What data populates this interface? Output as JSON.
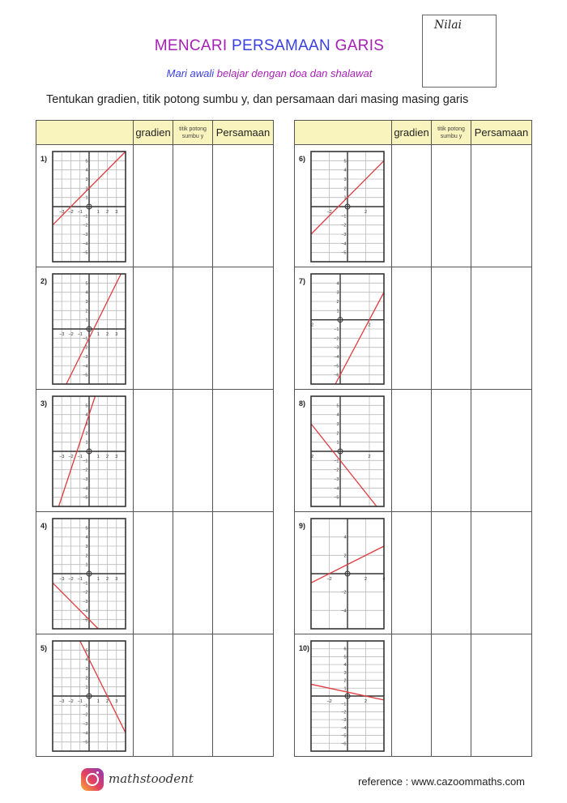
{
  "header": {
    "nilai_label": "Nilai",
    "title_parts": [
      "MENCARI ",
      "PERSAMAAN ",
      "GARIS"
    ],
    "subtitle_parts": [
      "Mari awali ",
      "belajar dengan doa dan shalawat"
    ],
    "instruction": "Tentukan gradien, titik potong sumbu y, dan persamaan dari masing masing garis",
    "colors": {
      "purple": "#a51fb5",
      "blue": "#3a3fe0",
      "header_fill": "#f9f4bd",
      "line": "#e0393e"
    }
  },
  "table_headers": {
    "gradien": "gradien",
    "titik_potong": "titik potong sumbu y",
    "persamaan": "Persamaan"
  },
  "questions": [
    {
      "label": "1)",
      "xlim": [
        -4,
        4
      ],
      "ylim": [
        -6,
        6
      ],
      "gx": 1,
      "gy": 1,
      "xticks": [
        -3,
        -2,
        -1,
        1,
        2,
        3
      ],
      "yticks": [
        -5,
        -4,
        -3,
        -2,
        -1,
        1,
        2,
        3,
        4,
        5
      ],
      "slope": 1,
      "intercept": 2
    },
    {
      "label": "2)",
      "xlim": [
        -4,
        4
      ],
      "ylim": [
        -6,
        6
      ],
      "gx": 1,
      "gy": 1,
      "xticks": [
        -3,
        -2,
        -1,
        1,
        2,
        3
      ],
      "yticks": [
        -5,
        -4,
        -3,
        -2,
        -1,
        1,
        2,
        3,
        4,
        5
      ],
      "slope": 2,
      "intercept": -1
    },
    {
      "label": "3)",
      "xlim": [
        -4,
        4
      ],
      "ylim": [
        -6,
        6
      ],
      "gx": 1,
      "gy": 1,
      "xticks": [
        -3,
        -2,
        -1,
        1,
        2,
        3
      ],
      "yticks": [
        -5,
        -4,
        -3,
        -2,
        -1,
        1,
        2,
        3,
        4,
        5
      ],
      "slope": 3,
      "intercept": 4
    },
    {
      "label": "4)",
      "xlim": [
        -4,
        4
      ],
      "ylim": [
        -6,
        6
      ],
      "gx": 1,
      "gy": 1,
      "xticks": [
        -3,
        -2,
        -1,
        1,
        2,
        3
      ],
      "yticks": [
        -5,
        -4,
        -3,
        -2,
        -1,
        1,
        2,
        3,
        4,
        5
      ],
      "slope": -1,
      "intercept": -5
    },
    {
      "label": "5)",
      "xlim": [
        -4,
        4
      ],
      "ylim": [
        -6,
        6
      ],
      "gx": 1,
      "gy": 1,
      "xticks": [
        -3,
        -2,
        -1,
        1,
        2,
        3
      ],
      "yticks": [
        -5,
        -4,
        -3,
        -2,
        -1,
        1,
        2,
        3,
        4,
        5
      ],
      "slope": -2,
      "intercept": 4
    },
    {
      "label": "6)",
      "xlim": [
        -4,
        4
      ],
      "ylim": [
        -6,
        6
      ],
      "gx": 2,
      "gy": 1,
      "xticks": [
        -2,
        2
      ],
      "yticks": [
        -5,
        -4,
        -3,
        -2,
        -1,
        1,
        2,
        3,
        4,
        5
      ],
      "slope": 1,
      "intercept": 1
    },
    {
      "label": "7)",
      "xlim": [
        -2,
        3
      ],
      "ylim": [
        -7,
        5
      ],
      "gx": 2,
      "gy": 1,
      "xticks": [
        -2,
        2
      ],
      "yticks": [
        -6,
        -5,
        -4,
        -3,
        -2,
        -1,
        1,
        2,
        3,
        4
      ],
      "slope": 3,
      "intercept": -6
    },
    {
      "label": "8)",
      "xlim": [
        -2,
        3
      ],
      "ylim": [
        -6,
        6
      ],
      "gx": 2,
      "gy": 1,
      "xticks": [
        -2,
        2
      ],
      "yticks": [
        -5,
        -4,
        -3,
        -2,
        -1,
        1,
        2,
        3,
        4,
        5
      ],
      "slope": -2,
      "intercept": -1
    },
    {
      "label": "9)",
      "xlim": [
        -4,
        4
      ],
      "ylim": [
        -6,
        6
      ],
      "gx": 2,
      "gy": 2,
      "xticks": [
        -2,
        2,
        4
      ],
      "yticks": [
        -4,
        -2,
        2,
        4
      ],
      "slope": 0.5,
      "intercept": 1
    },
    {
      "label": "10)",
      "xlim": [
        -4,
        4
      ],
      "ylim": [
        -7,
        7
      ],
      "gx": 2,
      "gy": 1,
      "xticks": [
        -2,
        2
      ],
      "yticks": [
        -6,
        -5,
        -4,
        -3,
        -2,
        -1,
        1,
        2,
        3,
        4,
        5,
        6
      ],
      "slope": -0.25,
      "intercept": 0.5
    }
  ],
  "footer": {
    "icon": "instagram-icon",
    "brand": "mathstoodent",
    "reference": "reference : www.cazoommaths.com"
  }
}
